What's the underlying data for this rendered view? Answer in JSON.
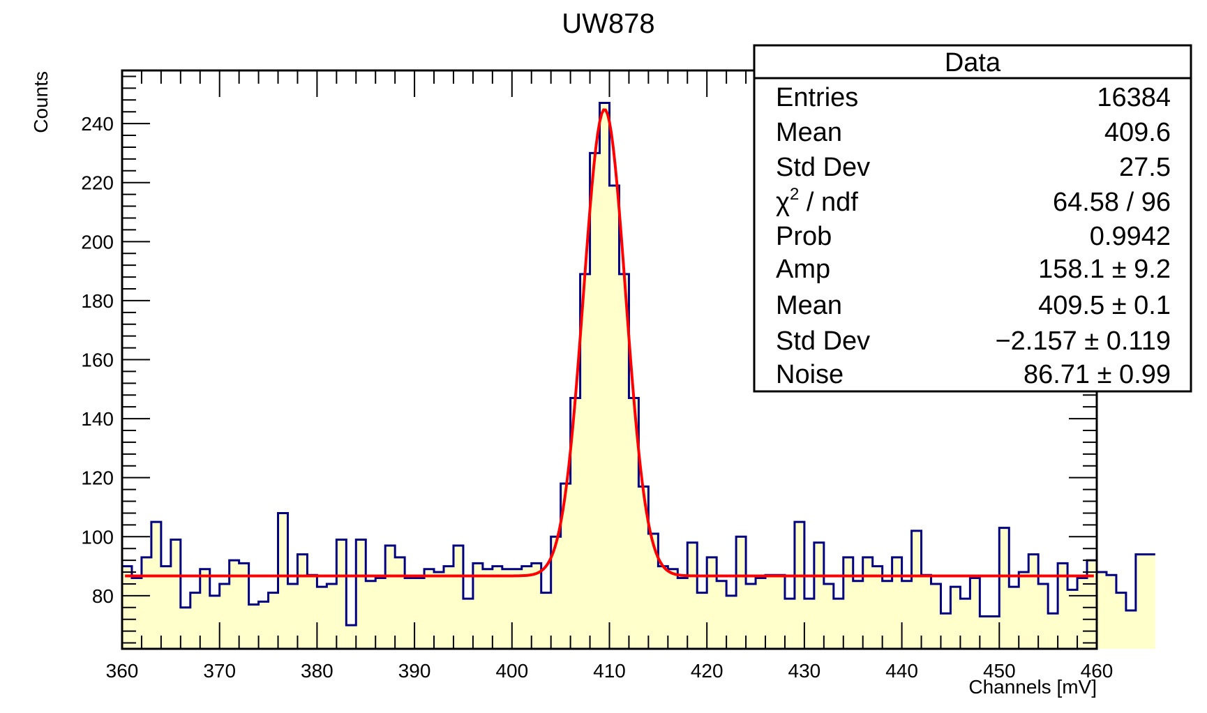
{
  "chart_data": {
    "type": "histogram",
    "title": "UW878",
    "xlabel": "Channels [mV]",
    "ylabel": "Counts",
    "xlim": [
      360,
      460
    ],
    "ylim": [
      62,
      258
    ],
    "x_ticks": [
      360,
      370,
      380,
      390,
      400,
      410,
      420,
      430,
      440,
      450,
      460
    ],
    "y_ticks": [
      80,
      100,
      120,
      140,
      160,
      180,
      200,
      220,
      240
    ],
    "bin_width": 1,
    "bin_start": 360,
    "counts": [
      90,
      86,
      93,
      105,
      90,
      99,
      76,
      81,
      89,
      80,
      84,
      92,
      91,
      77,
      78,
      81,
      108,
      84,
      94,
      87,
      83,
      84,
      99,
      70,
      99,
      85,
      86,
      97,
      93,
      86,
      86,
      89,
      88,
      90,
      97,
      79,
      91,
      89,
      90,
      89,
      89,
      90,
      91,
      81,
      100,
      118,
      147,
      189,
      230,
      247,
      219,
      189,
      147,
      117,
      101,
      90,
      89,
      86,
      98,
      81,
      93,
      85,
      80,
      100,
      84,
      86,
      87,
      87,
      79,
      105,
      79,
      98,
      84,
      79,
      93,
      85,
      93,
      90,
      85,
      93,
      85,
      102,
      87,
      84,
      74,
      83,
      79,
      86,
      73,
      73,
      103,
      83,
      88,
      94,
      84,
      74,
      91,
      82,
      86,
      92,
      88,
      87,
      81,
      75,
      94,
      94
    ],
    "fit": {
      "function": "gaussian+constant",
      "amp": 158.1,
      "mean": 409.5,
      "sigma": 2.157,
      "noise": 86.71,
      "x_range": [
        360.3,
        459.7
      ],
      "color": "#ff0000"
    },
    "histogram_line_color": "#000080",
    "histogram_fill_color": "#ffffcc",
    "stats_box": {
      "header": "Data",
      "rows": [
        {
          "label": "Entries",
          "value": "16384"
        },
        {
          "label": "Mean",
          "value": "409.6"
        },
        {
          "label": "Std Dev",
          "value": "27.5"
        },
        {
          "label": "χ² / ndf",
          "label_base": "χ",
          "label_sup": "2",
          "label_rest": " / ndf",
          "value": "64.58 / 96"
        },
        {
          "label": "Prob",
          "value": "0.9942"
        },
        {
          "label": "Amp",
          "value": "158.1 ± 9.2"
        },
        {
          "label": "Mean",
          "value": "409.5 ± 0.1"
        },
        {
          "label": "Std Dev",
          "value": "−2.157 ± 0.119"
        },
        {
          "label": "Noise",
          "value": "86.71 ± 0.99"
        }
      ]
    }
  }
}
